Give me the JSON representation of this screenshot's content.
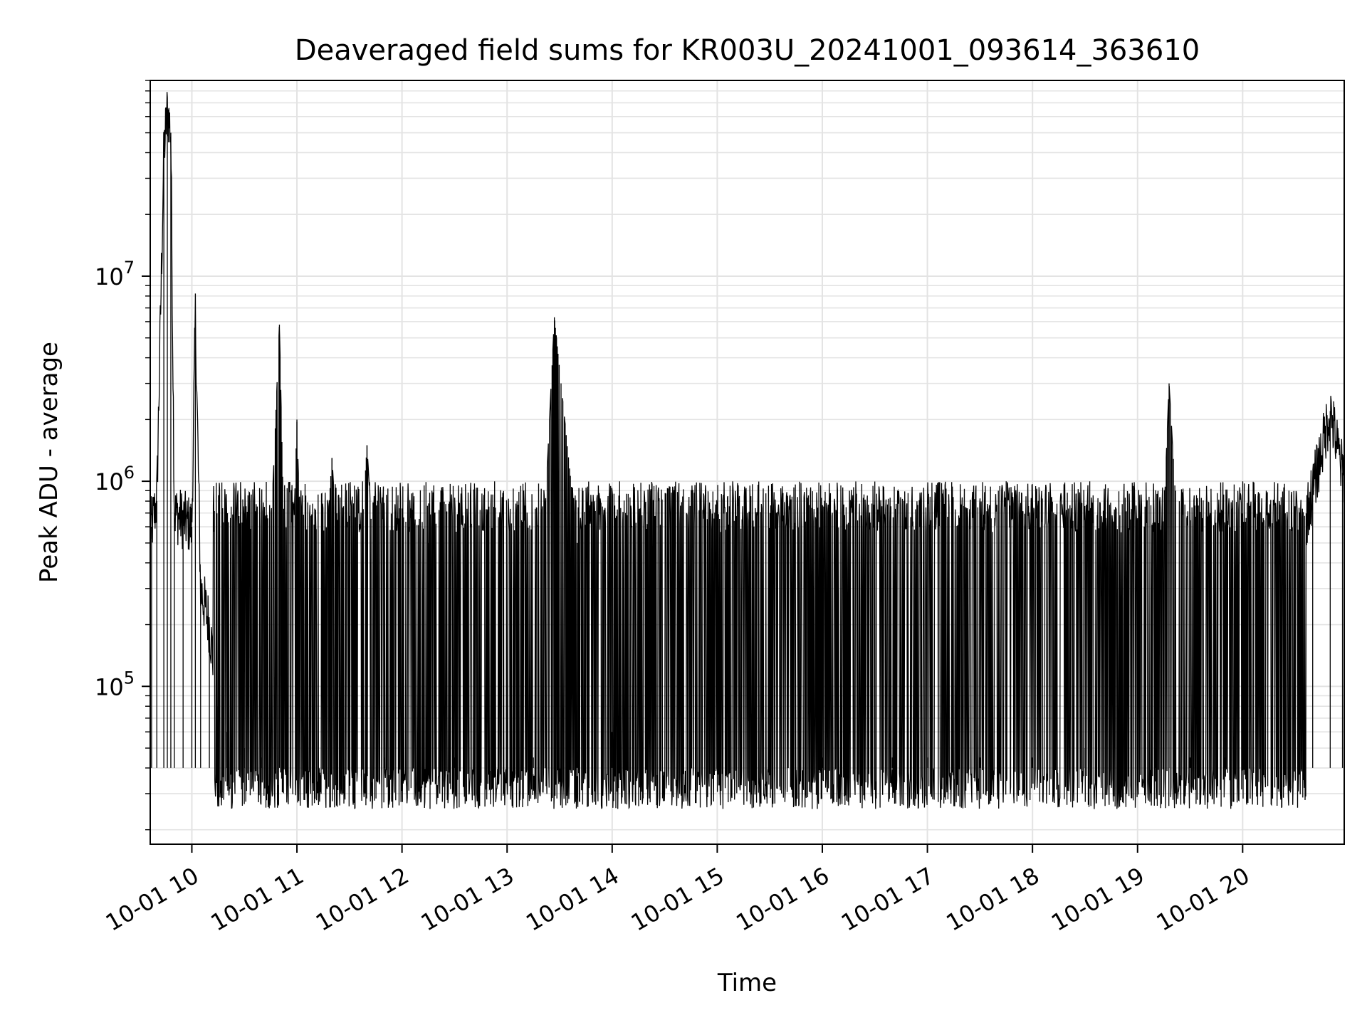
{
  "chart_data": {
    "type": "line",
    "title": "Deaveraged field sums for KR003U_20241001_093614_363610",
    "xlabel": "Time",
    "ylabel": "Peak ADU - average",
    "yscale": "log",
    "xlim": [
      "2024-10-01 09:36:14",
      "2024-10-01 20:58:00"
    ],
    "ylim": [
      17000,
      90000000
    ],
    "grid": true,
    "grid_minor": true,
    "line_color": "#000000",
    "grid_color": "#e3e3e3",
    "x_ticks": [
      {
        "value": "2024-10-01 10:00",
        "label": "10-01 10"
      },
      {
        "value": "2024-10-01 11:00",
        "label": "10-01 11"
      },
      {
        "value": "2024-10-01 12:00",
        "label": "10-01 12"
      },
      {
        "value": "2024-10-01 13:00",
        "label": "10-01 13"
      },
      {
        "value": "2024-10-01 14:00",
        "label": "10-01 14"
      },
      {
        "value": "2024-10-01 15:00",
        "label": "10-01 15"
      },
      {
        "value": "2024-10-01 16:00",
        "label": "10-01 16"
      },
      {
        "value": "2024-10-01 17:00",
        "label": "10-01 17"
      },
      {
        "value": "2024-10-01 18:00",
        "label": "10-01 18"
      },
      {
        "value": "2024-10-01 19:00",
        "label": "10-01 19"
      },
      {
        "value": "2024-10-01 20:00",
        "label": "10-01 20"
      }
    ],
    "y_ticks": [
      {
        "value": 100000,
        "base": "10",
        "exp": "5"
      },
      {
        "value": 1000000,
        "base": "10",
        "exp": "6"
      },
      {
        "value": 10000000,
        "base": "10",
        "exp": "7"
      }
    ],
    "series": [
      {
        "x": [
          "2024-10-01 09:37",
          "2024-10-01 09:40",
          "2024-10-01 09:44",
          "2024-10-01 09:46",
          "2024-10-01 09:48",
          "2024-10-01 09:50",
          "2024-10-01 09:55",
          "2024-10-01 10:00",
          "2024-10-01 10:02",
          "2024-10-01 10:05",
          "2024-10-01 10:10",
          "2024-10-01 10:15",
          "2024-10-01 10:20",
          "2024-10-01 10:30",
          "2024-10-01 10:40",
          "2024-10-01 10:50",
          "2024-10-01 10:55",
          "2024-10-01 11:00",
          "2024-10-01 11:05",
          "2024-10-01 11:10",
          "2024-10-01 11:20",
          "2024-10-01 11:30",
          "2024-10-01 11:40",
          "2024-10-01 11:50",
          "2024-10-01 12:00",
          "2024-10-01 12:15",
          "2024-10-01 12:30",
          "2024-10-01 12:45",
          "2024-10-01 13:00",
          "2024-10-01 13:15",
          "2024-10-01 13:27",
          "2024-10-01 13:40",
          "2024-10-01 14:00",
          "2024-10-01 14:20",
          "2024-10-01 14:40",
          "2024-10-01 15:00",
          "2024-10-01 15:20",
          "2024-10-01 15:40",
          "2024-10-01 16:00",
          "2024-10-01 16:20",
          "2024-10-01 16:40",
          "2024-10-01 17:00",
          "2024-10-01 17:30",
          "2024-10-01 18:00",
          "2024-10-01 18:30",
          "2024-10-01 18:50",
          "2024-10-01 19:10",
          "2024-10-01 19:18",
          "2024-10-01 19:30",
          "2024-10-01 19:50",
          "2024-10-01 20:10",
          "2024-10-01 20:30",
          "2024-10-01 20:40",
          "2024-10-01 20:50",
          "2024-10-01 20:57"
        ],
        "y": [
          600000,
          800000,
          40000000,
          65000000,
          50000000,
          700000,
          650000,
          600000,
          6500000,
          300000,
          200000,
          80000,
          60000,
          50000,
          45000,
          5800000,
          60000,
          2000000,
          50000,
          55000,
          1300000,
          50000,
          1500000,
          45000,
          45000,
          500000,
          45000,
          40000,
          40000,
          45000,
          6300000,
          500000,
          60000,
          45000,
          50000,
          40000,
          45000,
          40000,
          45000,
          45000,
          45000,
          45000,
          45000,
          45000,
          50000,
          45000,
          50000,
          3000000,
          45000,
          45000,
          45000,
          400000,
          900000,
          2200000,
          1100000
        ]
      }
    ]
  }
}
